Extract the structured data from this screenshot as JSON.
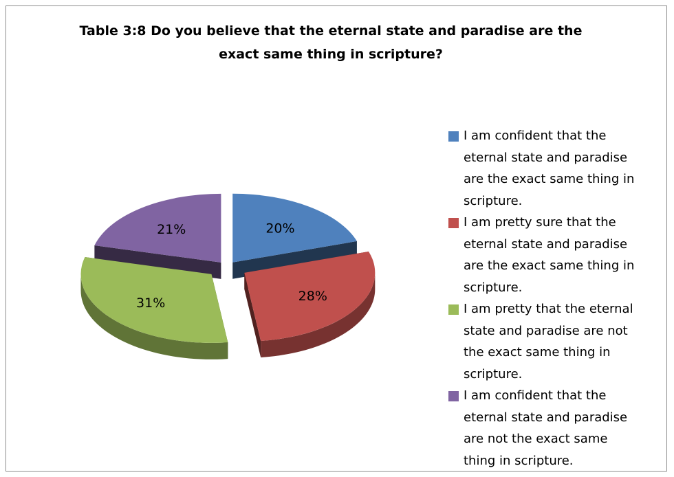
{
  "chart_data": {
    "type": "pie",
    "title": "Table 3:8 Do you believe that the eternal state and paradise are the exact same thing in scripture?",
    "title_lines": [
      "Table 3:8 Do you believe that the eternal state and paradise are the",
      "exact same thing in scripture?"
    ],
    "categories": [
      "I am confident that the eternal state and paradise are the exact same thing in scripture.",
      "I am pretty sure that the eternal state and paradise are the exact same thing in scripture.",
      "I am pretty that the eternal state and paradise are not the exact same thing in scripture.",
      "I am confident that the eternal state and paradise are not the exact same thing in scripture."
    ],
    "values": [
      20,
      28,
      31,
      21
    ],
    "labels": [
      "20%",
      "28%",
      "31%",
      "21%"
    ],
    "colors": [
      "#4f81bd",
      "#c0504d",
      "#9bbb59",
      "#8064a2"
    ],
    "style": "3d-exploded-pie",
    "legend_position": "right"
  },
  "legend_lines": [
    [
      "I am confident that the",
      "eternal state and paradise",
      "are the exact same thing in",
      "scripture."
    ],
    [
      "I am pretty sure that the",
      "eternal state and paradise",
      "are the exact same thing in",
      "scripture."
    ],
    [
      "I am pretty that the eternal",
      "state and paradise are not",
      "the exact same thing in",
      "scripture."
    ],
    [
      "I am confident that the",
      "eternal state and paradise",
      "are not the exact same",
      "thing in scripture."
    ]
  ]
}
